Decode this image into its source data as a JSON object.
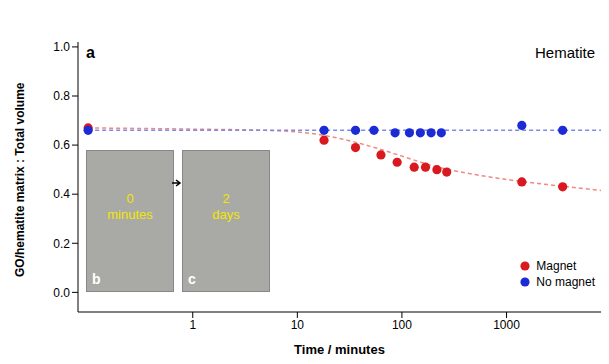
{
  "chart_data": {
    "type": "scatter",
    "panel_label": "a",
    "title": "Hematite",
    "x_label": "Time / minutes",
    "y_label": "GO/hematite matrix : Total volume",
    "log": "x",
    "xlim": [
      0.08,
      8000
    ],
    "xticks": [
      1,
      10,
      100,
      1000
    ],
    "ylim": [
      -0.08,
      1.02
    ],
    "yticks": [
      {
        "value": 0,
        "label": "0.0"
      },
      0.2,
      0.4,
      0.6,
      0.8,
      {
        "value": 1,
        "label": "1.0"
      }
    ],
    "grid": false,
    "legend": "lower right",
    "series": [
      {
        "name": "Magnet",
        "color": "#d8191f",
        "marker": "circle",
        "x": [
          0.1,
          18,
          36,
          63,
          90,
          131,
          168,
          216,
          268,
          1400,
          3440
        ],
        "values": [
          0.67,
          0.62,
          0.59,
          0.56,
          0.53,
          0.51,
          0.51,
          0.5,
          0.49,
          0.45,
          0.43
        ]
      },
      {
        "name": "No magnet",
        "color": "#1c2bd4",
        "marker": "circle",
        "x": [
          0.1,
          18,
          36,
          54,
          86,
          118,
          150,
          190,
          238,
          1400,
          3440
        ],
        "values": [
          0.66,
          0.66,
          0.66,
          0.66,
          0.65,
          0.65,
          0.65,
          0.65,
          0.65,
          0.68,
          0.66
        ]
      }
    ],
    "fits": [
      {
        "color": "#ee8a84",
        "line_style": "dashed",
        "x": [
          0.1,
          1,
          5,
          15,
          30,
          60,
          100,
          200,
          500,
          1000,
          3000,
          8000
        ],
        "values": [
          0.67,
          0.665,
          0.66,
          0.645,
          0.62,
          0.585,
          0.555,
          0.515,
          0.48,
          0.46,
          0.435,
          0.415
        ]
      },
      {
        "color": "#7f8ae6",
        "line_style": "dashed",
        "x": [
          0.1,
          8000
        ],
        "values": [
          0.66,
          0.66
        ]
      }
    ],
    "insets": [
      {
        "label": "b",
        "text": "0 minutes"
      },
      {
        "label": "c",
        "text": "2 days"
      }
    ]
  }
}
